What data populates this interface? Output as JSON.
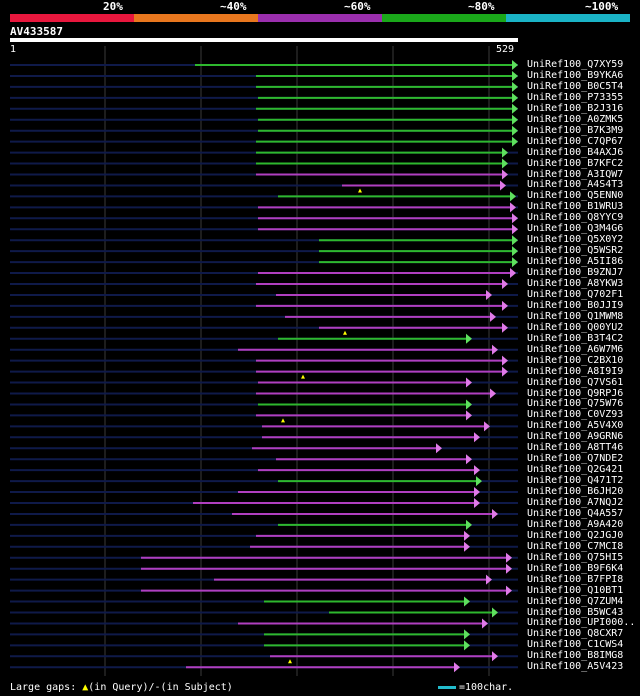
{
  "legend": {
    "segments": [
      {
        "label": "20%",
        "color": "#e8173d"
      },
      {
        "label": "~40%",
        "color": "#e8771e"
      },
      {
        "label": "~60%",
        "color": "#9b2fae"
      },
      {
        "label": "~80%",
        "color": "#1aa81a"
      },
      {
        "label": "~100%",
        "color": "#1ab3c6"
      }
    ]
  },
  "query": {
    "id": "AV433587",
    "start": "1",
    "end": "529",
    "length": 529
  },
  "colors": {
    "line": "#0f1a4a",
    "green": "#2eb82e",
    "purple": "#b03fc0",
    "arrow_green": "#5ee05e",
    "arrow_purple": "#e07ae8",
    "grid": "#3a3a3a"
  },
  "hits": [
    {
      "name": "UniRef100_Q7XY59",
      "start": 195,
      "end": 518,
      "color": "green"
    },
    {
      "name": "UniRef100_B9YKA6",
      "start": 256,
      "end": 518,
      "color": "green"
    },
    {
      "name": "UniRef100_B0C5T4",
      "start": 256,
      "end": 518,
      "color": "green"
    },
    {
      "name": "UniRef100_P73355",
      "start": 258,
      "end": 518,
      "color": "green"
    },
    {
      "name": "UniRef100_B2J316",
      "start": 256,
      "end": 518,
      "color": "green"
    },
    {
      "name": "UniRef100_A0ZMK5",
      "start": 258,
      "end": 518,
      "color": "green"
    },
    {
      "name": "UniRef100_B7K3M9",
      "start": 258,
      "end": 518,
      "color": "green"
    },
    {
      "name": "UniRef100_C7QP67",
      "start": 256,
      "end": 518,
      "color": "green"
    },
    {
      "name": "UniRef100_B4AXJ6",
      "start": 256,
      "end": 508,
      "color": "green"
    },
    {
      "name": "UniRef100_B7KFC2",
      "start": 256,
      "end": 508,
      "color": "green"
    },
    {
      "name": "UniRef100_A3IQW7",
      "start": 256,
      "end": 508,
      "color": "purple"
    },
    {
      "name": "UniRef100_A4S4T3",
      "start": 342,
      "end": 506,
      "color": "purple",
      "gap": 360
    },
    {
      "name": "UniRef100_Q5ENN0",
      "start": 278,
      "end": 516,
      "color": "green"
    },
    {
      "name": "UniRef100_B1WRU3",
      "start": 258,
      "end": 516,
      "color": "purple"
    },
    {
      "name": "UniRef100_Q8YYC9",
      "start": 258,
      "end": 518,
      "color": "purple"
    },
    {
      "name": "UniRef100_Q3M4G6",
      "start": 258,
      "end": 518,
      "color": "purple"
    },
    {
      "name": "UniRef100_Q5X0Y2",
      "start": 319,
      "end": 518,
      "color": "green"
    },
    {
      "name": "UniRef100_Q5WSR2",
      "start": 319,
      "end": 518,
      "color": "green"
    },
    {
      "name": "UniRef100_A5II86",
      "start": 319,
      "end": 518,
      "color": "green"
    },
    {
      "name": "UniRef100_B9ZNJ7",
      "start": 258,
      "end": 516,
      "color": "purple"
    },
    {
      "name": "UniRef100_A8YKW3",
      "start": 256,
      "end": 508,
      "color": "purple"
    },
    {
      "name": "UniRef100_Q702F1",
      "start": 276,
      "end": 492,
      "color": "purple"
    },
    {
      "name": "UniRef100_B0JJI9",
      "start": 256,
      "end": 508,
      "color": "purple"
    },
    {
      "name": "UniRef100_Q1MWM8",
      "start": 285,
      "end": 496,
      "color": "purple"
    },
    {
      "name": "UniRef100_Q00YU2",
      "start": 319,
      "end": 508,
      "color": "purple",
      "gap": 345
    },
    {
      "name": "UniRef100_B3T4C2",
      "start": 278,
      "end": 472,
      "color": "green"
    },
    {
      "name": "UniRef100_A6W7M6",
      "start": 238,
      "end": 498,
      "color": "purple"
    },
    {
      "name": "UniRef100_C2BX10",
      "start": 256,
      "end": 508,
      "color": "purple"
    },
    {
      "name": "UniRef100_A8I9I9",
      "start": 256,
      "end": 508,
      "color": "purple",
      "gap": 303
    },
    {
      "name": "UniRef100_Q7VS61",
      "start": 258,
      "end": 472,
      "color": "purple"
    },
    {
      "name": "UniRef100_Q9RPJ6",
      "start": 256,
      "end": 496,
      "color": "purple"
    },
    {
      "name": "UniRef100_Q75W76",
      "start": 258,
      "end": 472,
      "color": "green"
    },
    {
      "name": "UniRef100_C0VZ93",
      "start": 256,
      "end": 472,
      "color": "purple",
      "gap": 283
    },
    {
      "name": "UniRef100_A5V4X0",
      "start": 262,
      "end": 490,
      "color": "purple"
    },
    {
      "name": "UniRef100_A9GRN6",
      "start": 262,
      "end": 480,
      "color": "purple"
    },
    {
      "name": "UniRef100_A8TT46",
      "start": 252,
      "end": 442,
      "color": "purple"
    },
    {
      "name": "UniRef100_Q7NDE2",
      "start": 276,
      "end": 472,
      "color": "purple"
    },
    {
      "name": "UniRef100_Q2G421",
      "start": 258,
      "end": 480,
      "color": "purple"
    },
    {
      "name": "UniRef100_Q471T2",
      "start": 278,
      "end": 482,
      "color": "green"
    },
    {
      "name": "UniRef100_B6JH20",
      "start": 238,
      "end": 480,
      "color": "purple"
    },
    {
      "name": "UniRef100_A7NQJ2",
      "start": 193,
      "end": 480,
      "color": "purple"
    },
    {
      "name": "UniRef100_Q4A557",
      "start": 232,
      "end": 498,
      "color": "purple"
    },
    {
      "name": "UniRef100_A9A420",
      "start": 278,
      "end": 472,
      "color": "green"
    },
    {
      "name": "UniRef100_Q2JGJ0",
      "start": 256,
      "end": 470,
      "color": "purple"
    },
    {
      "name": "UniRef100_C7MCI8",
      "start": 250,
      "end": 470,
      "color": "purple"
    },
    {
      "name": "UniRef100_Q75HI5",
      "start": 141,
      "end": 512,
      "color": "purple"
    },
    {
      "name": "UniRef100_B9F6K4",
      "start": 141,
      "end": 512,
      "color": "purple"
    },
    {
      "name": "UniRef100_B7FPI8",
      "start": 214,
      "end": 492,
      "color": "purple"
    },
    {
      "name": "UniRef100_Q10BT1",
      "start": 141,
      "end": 512,
      "color": "purple"
    },
    {
      "name": "UniRef100_Q7ZUM4",
      "start": 264,
      "end": 470,
      "color": "green"
    },
    {
      "name": "UniRef100_B5WC43",
      "start": 329,
      "end": 498,
      "color": "green"
    },
    {
      "name": "UniRef100_UPI000..",
      "start": 238,
      "end": 488,
      "color": "purple"
    },
    {
      "name": "UniRef100_Q8CXR7",
      "start": 264,
      "end": 470,
      "color": "green"
    },
    {
      "name": "UniRef100_C1CWS4",
      "start": 264,
      "end": 470,
      "color": "green"
    },
    {
      "name": "UniRef100_B8IMG8",
      "start": 270,
      "end": 498,
      "color": "purple",
      "gap": 290
    },
    {
      "name": "UniRef100_A5V423",
      "start": 186,
      "end": 460,
      "color": "purple"
    }
  ],
  "footer": {
    "gaps_text": "Large gaps: ",
    "gaps_query": "(in Query)/",
    "gaps_subject": "(in Subject)",
    "scale_text": "=100char."
  }
}
